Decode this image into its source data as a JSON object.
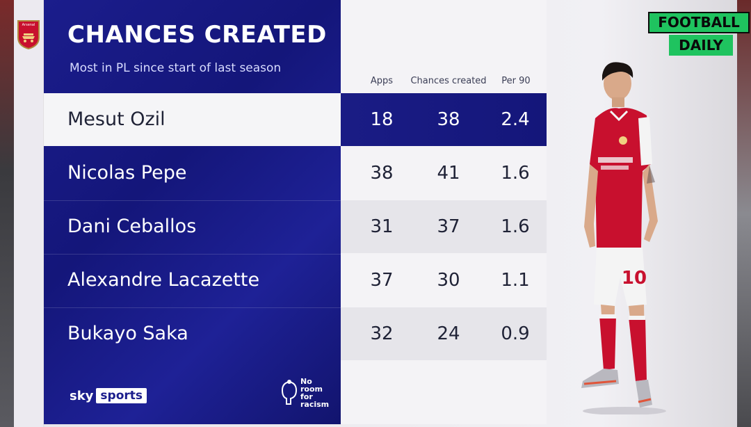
{
  "title": "CHANCES CREATED",
  "subtitle": "Most in PL since start of last season",
  "columns": [
    "Apps",
    "Chances created",
    "Per 90"
  ],
  "rows": [
    {
      "name": "Mesut Ozil",
      "apps": "18",
      "chances": "38",
      "per90": "2.4",
      "highlight": true
    },
    {
      "name": "Nicolas Pepe",
      "apps": "38",
      "chances": "41",
      "per90": "1.6"
    },
    {
      "name": "Dani Ceballos",
      "apps": "31",
      "chances": "37",
      "per90": "1.6"
    },
    {
      "name": "Alexandre Lacazette",
      "apps": "37",
      "chances": "30",
      "per90": "1.1"
    },
    {
      "name": "Bukayo Saka",
      "apps": "32",
      "chances": "24",
      "per90": "0.9"
    }
  ],
  "branding": {
    "sky_word": "sky",
    "sports_word": "sports",
    "nrfr_lines": [
      "No",
      "room",
      "for",
      "racism"
    ],
    "fd_top": "FOOTBALL",
    "fd_bottom": "DAILY",
    "crest_label": "Arsenal",
    "shirt_number": "10"
  },
  "colors": {
    "panel_blue": "#1b1d8c",
    "highlight_row": "#f5f5f7",
    "football_daily_green": "#1fc35f",
    "arsenal_red": "#c8102e"
  }
}
